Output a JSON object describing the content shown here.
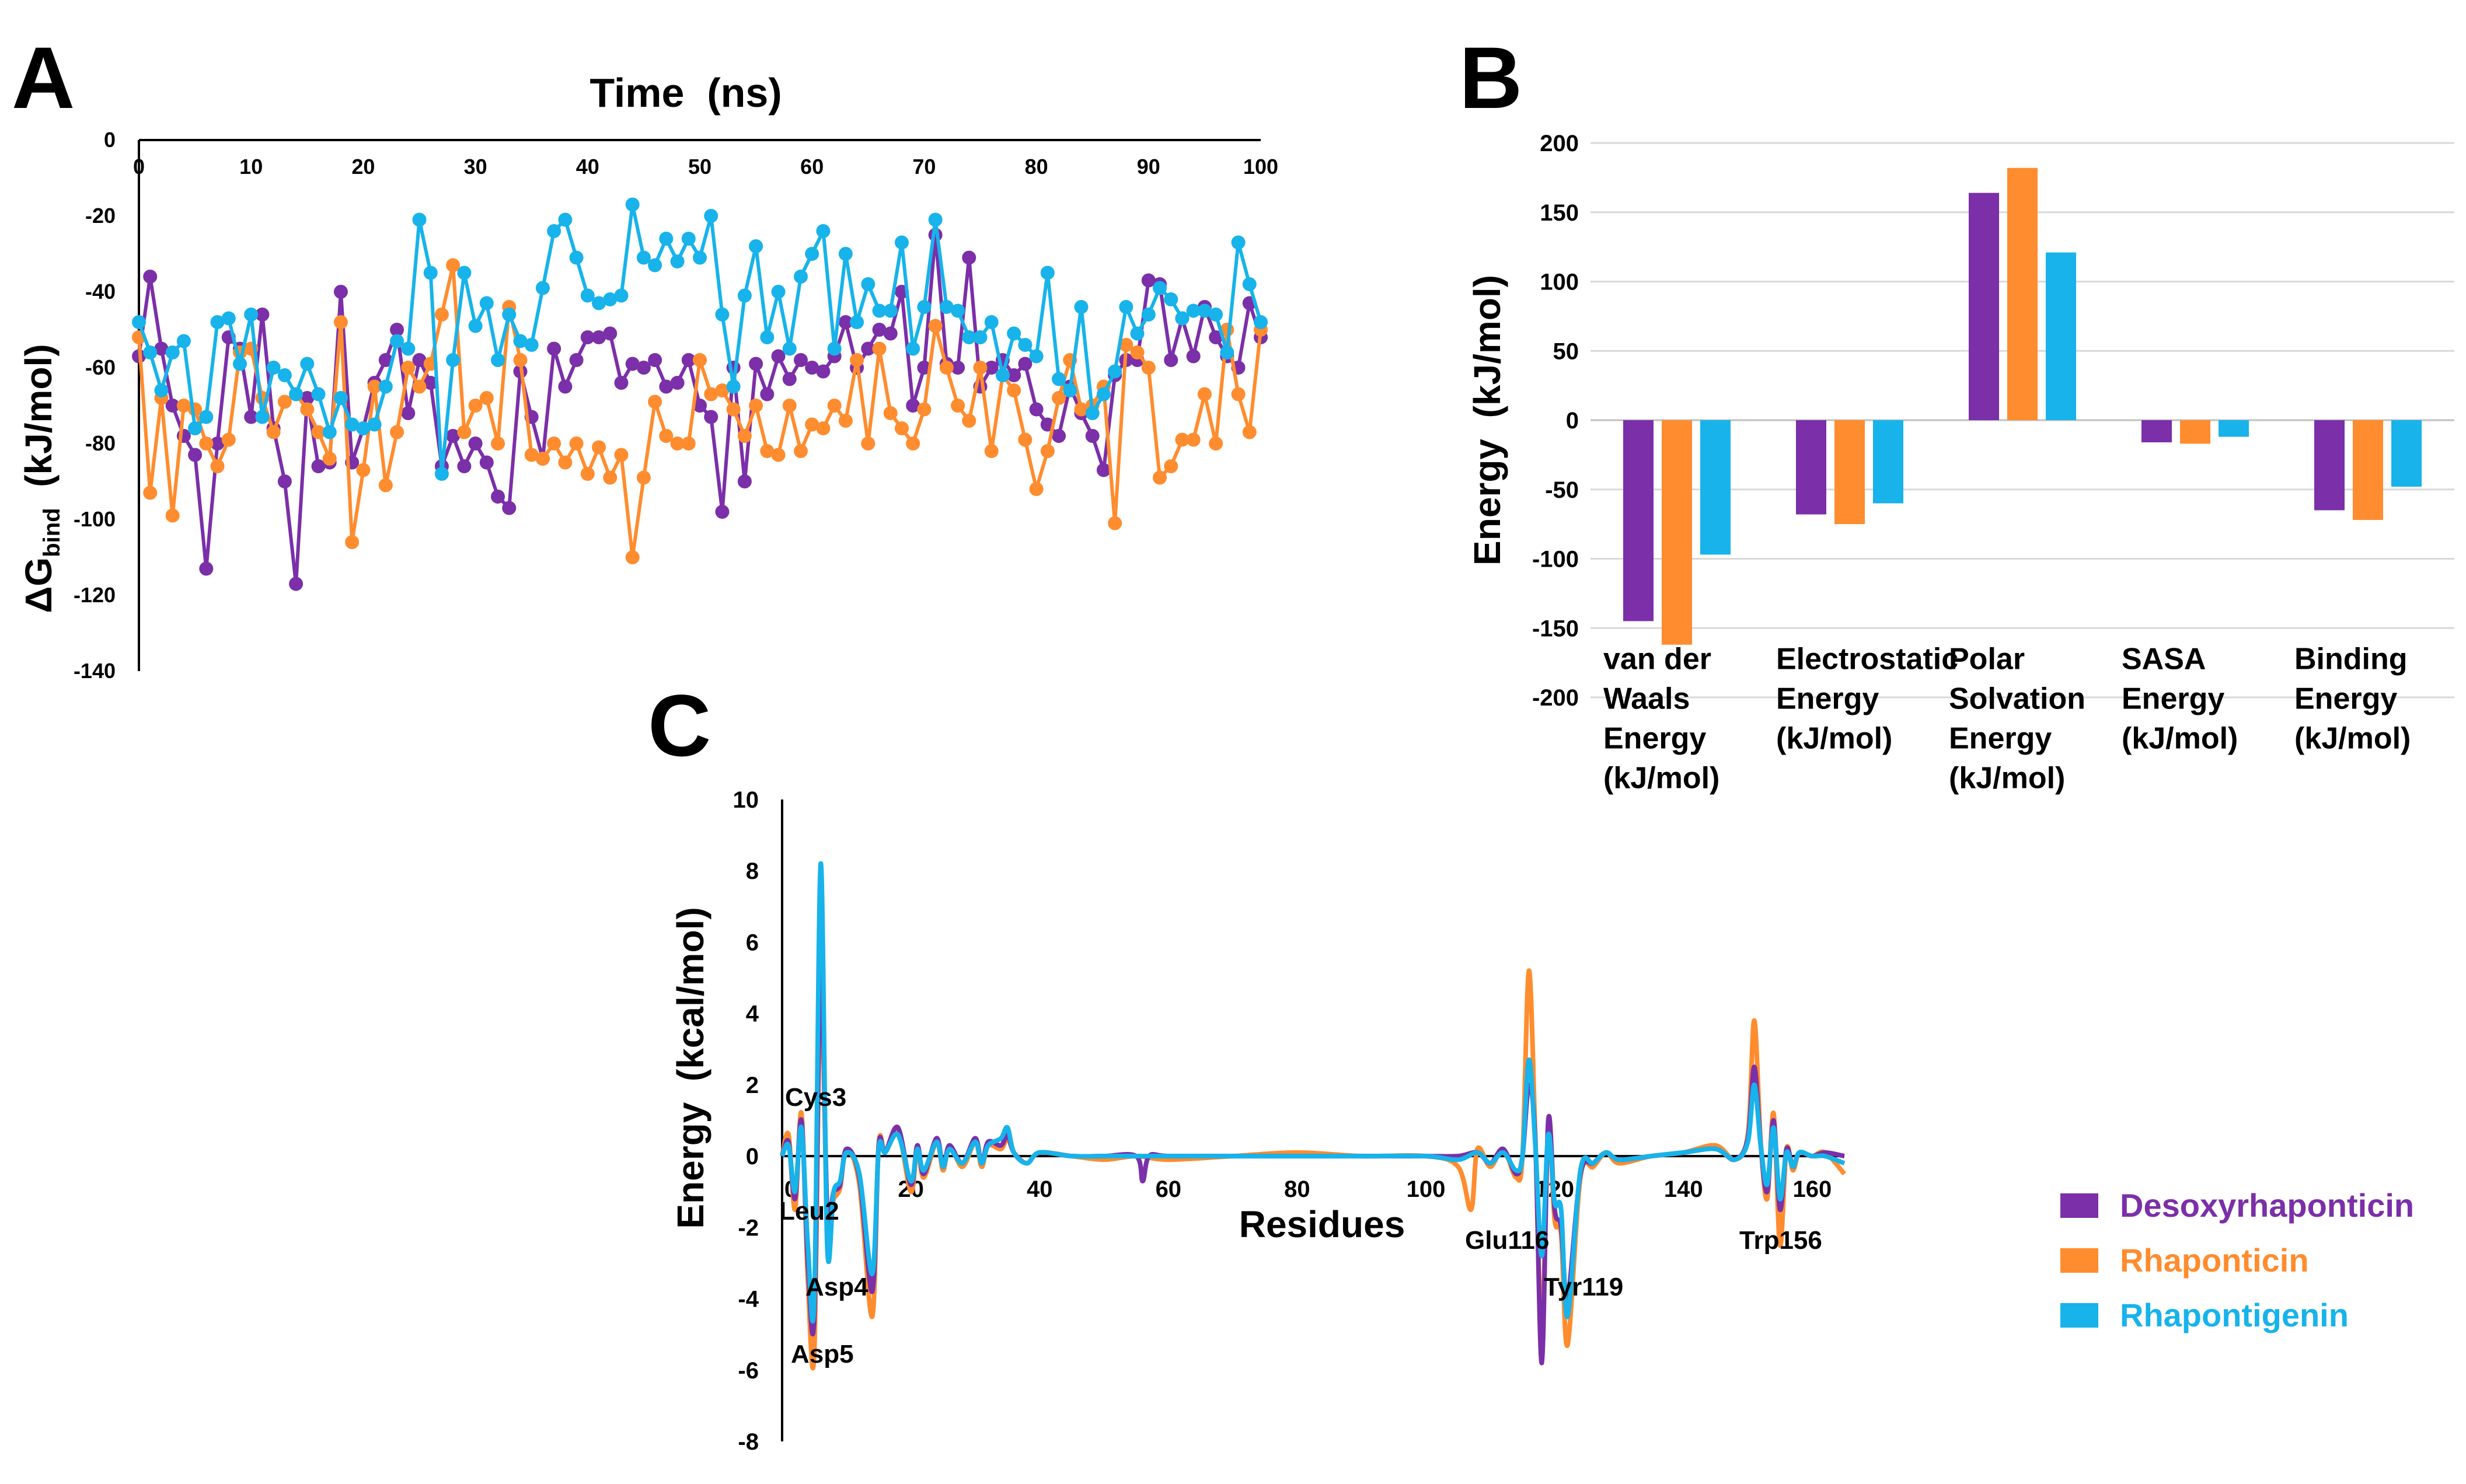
{
  "colors": {
    "desoxy": "#7B2FA8",
    "rhaponticin": "#FF8C2E",
    "rhapontigenin": "#17B3EA",
    "axis": "#000000",
    "grid": "#D9D9D9"
  },
  "legend": [
    {
      "name": "Desoxyrhaponticin",
      "color": "#7B2FA8"
    },
    {
      "name": "Rhaponticin",
      "color": "#FF8C2E"
    },
    {
      "name": "Rhapontigenin",
      "color": "#17B3EA"
    }
  ],
  "chart_data": [
    {
      "panel": "A",
      "type": "line",
      "title": "Time  (ns)",
      "ylabel": "ΔG",
      "ylabel_sub": "bind",
      "ylabel_unit": "  (kJ/mol)",
      "xlim": [
        0,
        100
      ],
      "ylim": [
        -140,
        0
      ],
      "xticks": [
        0,
        10,
        20,
        30,
        40,
        50,
        60,
        70,
        80,
        90,
        100
      ],
      "yticks": [
        0,
        -20,
        -40,
        -60,
        -80,
        -100,
        -120,
        -140
      ],
      "x": [
        0,
        1,
        2,
        3,
        4,
        5,
        6,
        7,
        8,
        9,
        10,
        11,
        12,
        13,
        14,
        15,
        16,
        17,
        18,
        19,
        20,
        21,
        22,
        23,
        24,
        25,
        26,
        27,
        28,
        29,
        30,
        31,
        32,
        33,
        34,
        35,
        36,
        37,
        38,
        39,
        40,
        41,
        42,
        43,
        44,
        45,
        46,
        47,
        48,
        49,
        50,
        51,
        52,
        53,
        54,
        55,
        56,
        57,
        58,
        59,
        60,
        61,
        62,
        63,
        64,
        65,
        66,
        67,
        68,
        69,
        70,
        71,
        72,
        73,
        74,
        75,
        76,
        77,
        78,
        79,
        80,
        81,
        82,
        83,
        84,
        85,
        86,
        87,
        88,
        89,
        90,
        91,
        92,
        93,
        94,
        95,
        96,
        97,
        98,
        99,
        100
      ],
      "series": [
        {
          "name": "Desoxyrhaponticin",
          "values": [
            -57,
            -36,
            -55,
            -70,
            -78,
            -83,
            -113,
            -80,
            -52,
            -55,
            -73,
            -46,
            -76,
            -90,
            -117,
            -68,
            -86,
            -85,
            -40,
            -85,
            -76,
            -64,
            -58,
            -50,
            -72,
            -58,
            -64,
            -86,
            -78,
            -86,
            -80,
            -85,
            -94,
            -97,
            -61,
            -73,
            -84,
            -55,
            -65,
            -58,
            -52,
            -52,
            -51,
            -64,
            -59,
            -60,
            -58,
            -65,
            -64,
            -58,
            -70,
            -73,
            -98,
            -60,
            -90,
            -59,
            -67,
            -57,
            -63,
            -58,
            -60,
            -61,
            -57,
            -48,
            -60,
            -55,
            -50,
            -51,
            -40,
            -70,
            -60,
            -25,
            -59,
            -60,
            -31,
            -65,
            -60,
            -58,
            -62,
            -59,
            -71,
            -75,
            -78,
            -65,
            -72,
            -78,
            -87,
            -62,
            -58,
            -58,
            -37,
            -38,
            -58,
            -47,
            -57,
            -44,
            -52,
            -57,
            -60,
            -43,
            -52
          ]
        },
        {
          "name": "Rhaponticin",
          "values": [
            -52,
            -93,
            -68,
            -99,
            -70,
            -71,
            -80,
            -86,
            -79,
            -56,
            -55,
            -68,
            -77,
            -69,
            -67,
            -71,
            -77,
            -84,
            -48,
            -106,
            -87,
            -65,
            -91,
            -77,
            -60,
            -65,
            -59,
            -46,
            -33,
            -77,
            -70,
            -68,
            -80,
            -44,
            -58,
            -83,
            -84,
            -80,
            -85,
            -80,
            -88,
            -81,
            -89,
            -83,
            -110,
            -89,
            -69,
            -78,
            -80,
            -80,
            -58,
            -67,
            -66,
            -71,
            -78,
            -70,
            -82,
            -83,
            -70,
            -82,
            -75,
            -76,
            -70,
            -74,
            -58,
            -80,
            -55,
            -72,
            -76,
            -80,
            -71,
            -49,
            -60,
            -70,
            -74,
            -60,
            -82,
            -62,
            -66,
            -79,
            -92,
            -82,
            -68,
            -58,
            -71,
            -70,
            -65,
            -101,
            -54,
            -56,
            -60,
            -89,
            -86,
            -79,
            -79,
            -67,
            -80,
            -50,
            -67,
            -77,
            -50
          ]
        },
        {
          "name": "Rhapontigenin",
          "values": [
            -48,
            -56,
            -66,
            -56,
            -53,
            -76,
            -73,
            -48,
            -47,
            -59,
            -46,
            -73,
            -60,
            -62,
            -67,
            -59,
            -67,
            -77,
            -68,
            -75,
            -76,
            -75,
            -65,
            -53,
            -55,
            -21,
            -35,
            -88,
            -58,
            -35,
            -49,
            -43,
            -58,
            -46,
            -53,
            -54,
            -39,
            -24,
            -21,
            -31,
            -41,
            -43,
            -42,
            -41,
            -17,
            -31,
            -33,
            -26,
            -32,
            -26,
            -31,
            -20,
            -46,
            -65,
            -41,
            -28,
            -52,
            -40,
            -55,
            -36,
            -30,
            -24,
            -55,
            -30,
            -48,
            -38,
            -45,
            -45,
            -27,
            -55,
            -44,
            -21,
            -44,
            -45,
            -52,
            -52,
            -48,
            -62,
            -51,
            -54,
            -57,
            -35,
            -63,
            -66,
            -44,
            -72,
            -67,
            -61,
            -44,
            -51,
            -46,
            -39,
            -42,
            -47,
            -45,
            -45,
            -46,
            -56,
            -27,
            -38,
            -48
          ]
        }
      ]
    },
    {
      "panel": "B",
      "type": "bar",
      "ylabel": "Energy  (kJ/mol)",
      "ylim": [
        -200,
        200
      ],
      "yticks": [
        200,
        150,
        100,
        50,
        0,
        -50,
        -100,
        -150,
        -200
      ],
      "categories": [
        [
          "van der",
          "Waals",
          "Energy",
          "(kJ/mol)"
        ],
        [
          "Electrostatic",
          "Energy",
          "(kJ/mol)"
        ],
        [
          "Polar",
          "Solvation",
          "Energy",
          "(kJ/mol)"
        ],
        [
          "SASA",
          "Energy",
          "(kJ/mol)"
        ],
        [
          "Binding",
          "Energy",
          "(kJ/mol)"
        ]
      ],
      "series": [
        {
          "name": "Desoxyrhaponticin",
          "values": [
            -145,
            -68,
            164,
            -16,
            -65
          ]
        },
        {
          "name": "Rhaponticin",
          "values": [
            -162,
            -75,
            182,
            -17,
            -72
          ]
        },
        {
          "name": "Rhapontigenin",
          "values": [
            -97,
            -60,
            121,
            -12,
            -48
          ]
        }
      ]
    },
    {
      "panel": "C",
      "type": "line",
      "xlabel": "Residues",
      "ylabel": "Energy  (kcal/mol)",
      "xlim": [
        0,
        165
      ],
      "ylim": [
        -8,
        10
      ],
      "xticks": [
        0,
        20,
        40,
        60,
        80,
        100,
        120,
        140,
        160
      ],
      "yticks": [
        10,
        8,
        6,
        4,
        2,
        0,
        -2,
        -4,
        -6,
        -8
      ],
      "annotations": [
        {
          "text": "Cys3",
          "x": 3
        },
        {
          "text": "Leu2",
          "x": 2
        },
        {
          "text": "Asp4",
          "x": 4
        },
        {
          "text": "Asp5",
          "x": 5
        },
        {
          "text": "Glu116",
          "x": 116
        },
        {
          "text": "Tyr119",
          "x": 119
        },
        {
          "text": "Trp156",
          "x": 156
        }
      ],
      "series": [
        {
          "name": "Desoxyrhaponticin",
          "x": [
            0,
            1,
            2,
            3,
            4,
            5,
            6,
            7,
            8,
            9,
            10,
            12,
            14,
            15,
            16,
            18,
            20,
            21,
            22,
            24,
            25,
            26,
            28,
            30,
            31,
            32,
            34,
            35,
            36,
            38,
            40,
            45,
            50,
            55,
            56,
            57,
            60,
            70,
            80,
            90,
            100,
            105,
            108,
            110,
            112,
            114,
            115,
            116,
            117,
            118,
            119,
            120,
            121,
            122,
            124,
            126,
            128,
            130,
            135,
            140,
            145,
            148,
            150,
            151,
            152,
            153,
            154,
            155,
            156,
            157,
            158,
            160,
            162,
            165
          ],
          "values": [
            0,
            0.4,
            -1.2,
            1.0,
            -3.0,
            -4.5,
            5.5,
            -1.5,
            -1.0,
            -0.8,
            0.2,
            -0.6,
            -3.8,
            0.3,
            0.1,
            0.8,
            -0.8,
            0.3,
            -0.5,
            0.5,
            -0.3,
            0.3,
            -0.2,
            0.5,
            -0.2,
            0.4,
            0.3,
            0.6,
            0.1,
            -0.2,
            0.1,
            0.0,
            0.0,
            0.0,
            -0.7,
            0.0,
            0.0,
            0.0,
            0.0,
            0.0,
            0.0,
            0.0,
            0.1,
            -0.2,
            0.2,
            -0.5,
            0.0,
            2.0,
            0.4,
            -5.8,
            1.0,
            -1.5,
            -2.0,
            -4.0,
            -0.5,
            -0.2,
            0.1,
            -0.1,
            0.0,
            0.1,
            0.2,
            -0.1,
            0.5,
            2.5,
            0.3,
            -1.0,
            1.0,
            -1.5,
            0.2,
            -0.3,
            0.1,
            0.0,
            0.1,
            0.0
          ]
        },
        {
          "name": "Rhaponticin",
          "x": [
            0,
            1,
            2,
            3,
            4,
            5,
            6,
            7,
            8,
            9,
            10,
            12,
            14,
            15,
            16,
            18,
            20,
            21,
            22,
            24,
            25,
            26,
            28,
            30,
            31,
            32,
            34,
            35,
            36,
            38,
            40,
            45,
            50,
            55,
            60,
            70,
            80,
            90,
            100,
            105,
            107,
            108,
            110,
            112,
            114,
            115,
            116,
            117,
            118,
            119,
            120,
            121,
            122,
            124,
            126,
            128,
            130,
            135,
            140,
            145,
            148,
            150,
            151,
            152,
            153,
            154,
            155,
            156,
            157,
            158,
            160,
            162,
            165
          ],
          "values": [
            0,
            0.6,
            -1.5,
            1.2,
            -3.5,
            -5.5,
            5.0,
            -1.8,
            -1.2,
            -0.9,
            0.2,
            -0.8,
            -4.5,
            0.3,
            0.1,
            0.7,
            -1.0,
            0.2,
            -0.6,
            0.4,
            -0.4,
            0.3,
            -0.3,
            0.4,
            -0.3,
            0.3,
            0.2,
            0.5,
            0.1,
            -0.2,
            0.1,
            0.0,
            -0.1,
            0.0,
            -0.1,
            0.0,
            0.1,
            0.0,
            0.0,
            -0.3,
            -1.5,
            0.2,
            -0.3,
            0.2,
            -0.6,
            0.0,
            5.2,
            0.5,
            -5.0,
            0.8,
            -1.8,
            -2.2,
            -5.3,
            -0.6,
            -0.3,
            0.1,
            -0.2,
            0.0,
            0.1,
            0.3,
            -0.1,
            0.6,
            3.8,
            0.4,
            -1.2,
            1.2,
            -2.5,
            0.2,
            -0.4,
            0.1,
            0.0,
            0.1,
            -0.5
          ]
        },
        {
          "name": "Rhapontigenin",
          "x": [
            0,
            1,
            2,
            3,
            4,
            5,
            6,
            7,
            8,
            9,
            10,
            12,
            14,
            15,
            16,
            18,
            20,
            21,
            22,
            24,
            25,
            26,
            28,
            30,
            31,
            32,
            34,
            35,
            36,
            38,
            40,
            45,
            50,
            55,
            60,
            70,
            80,
            90,
            100,
            105,
            108,
            110,
            112,
            114,
            115,
            116,
            117,
            118,
            119,
            120,
            121,
            122,
            124,
            126,
            128,
            130,
            135,
            140,
            145,
            148,
            150,
            151,
            152,
            153,
            154,
            155,
            156,
            157,
            158,
            160,
            162,
            165
          ],
          "values": [
            0,
            0.3,
            -1.0,
            0.8,
            -2.5,
            -4.0,
            8.2,
            -2.5,
            -1.0,
            -0.7,
            0.1,
            -0.5,
            -3.3,
            0.2,
            0.1,
            0.6,
            -0.7,
            0.2,
            -0.4,
            0.4,
            -0.3,
            0.2,
            -0.2,
            0.4,
            -0.2,
            0.3,
            0.5,
            0.8,
            0.1,
            -0.2,
            0.1,
            0.0,
            0.0,
            0.0,
            0.0,
            0.0,
            0.0,
            0.0,
            0.0,
            -0.1,
            0.1,
            -0.2,
            0.1,
            -0.4,
            0.0,
            2.7,
            0.3,
            -2.8,
            0.6,
            -1.3,
            -1.5,
            -4.5,
            -0.4,
            -0.2,
            0.1,
            -0.1,
            0.0,
            0.1,
            0.2,
            -0.1,
            0.4,
            2.0,
            0.3,
            -0.8,
            0.8,
            -1.2,
            0.1,
            -0.3,
            0.1,
            0.0,
            0.0,
            -0.2
          ]
        }
      ]
    }
  ]
}
